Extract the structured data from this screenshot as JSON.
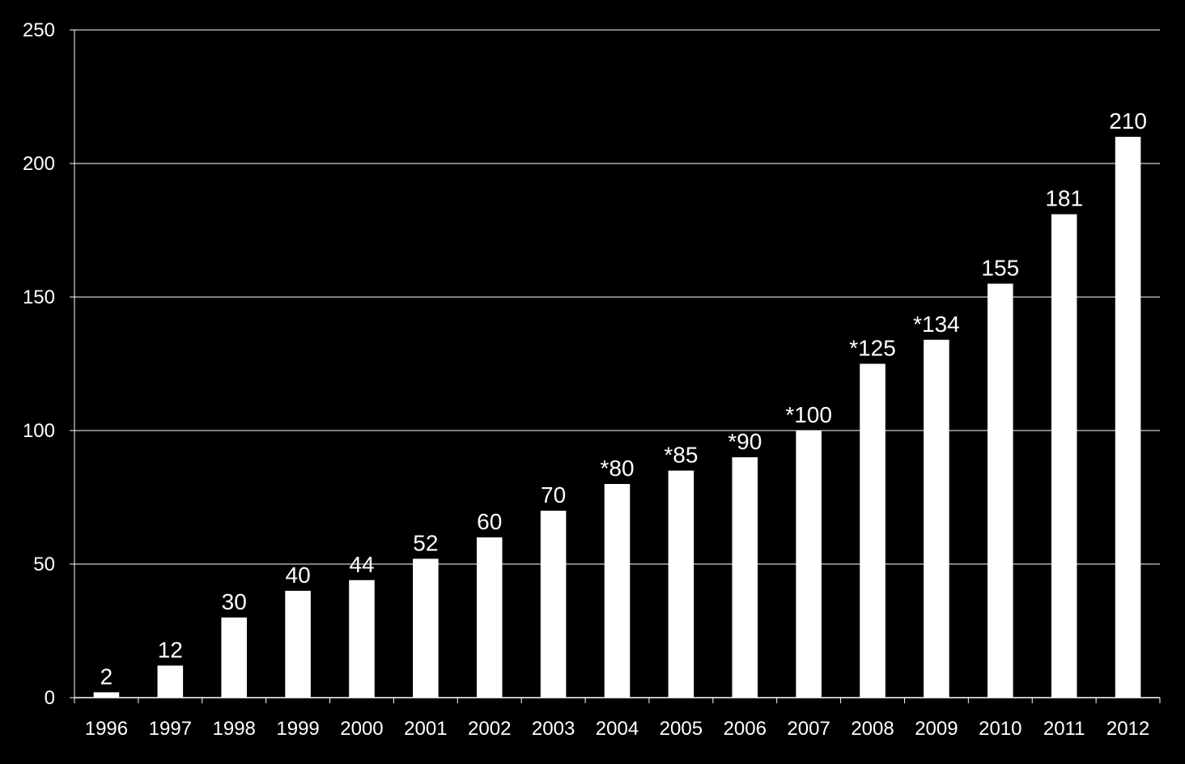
{
  "chart_data": {
    "type": "bar",
    "categories": [
      "1996",
      "1997",
      "1998",
      "1999",
      "2000",
      "2001",
      "2002",
      "2003",
      "2004",
      "2005",
      "2006",
      "2007",
      "2008",
      "2009",
      "2010",
      "2011",
      "2012"
    ],
    "values": [
      2,
      12,
      30,
      40,
      44,
      52,
      60,
      70,
      80,
      85,
      90,
      100,
      125,
      134,
      155,
      181,
      210
    ],
    "data_labels": [
      "2",
      "12",
      "30",
      "40",
      "44",
      "52",
      "60",
      "70",
      "*80",
      "*85",
      "*90",
      "*100",
      "*125",
      "*134",
      "155",
      "181",
      "210"
    ],
    "ylim": [
      0,
      250
    ],
    "yticks": [
      "0",
      "50",
      "100",
      "150",
      "200",
      "250"
    ],
    "title": "",
    "xlabel": "",
    "ylabel": "",
    "grid": "horizontal",
    "legend": "none",
    "colors": {
      "background": "#000000",
      "bar": "#ffffff",
      "gridline": "#ffffff",
      "text": "#ffffff"
    }
  }
}
